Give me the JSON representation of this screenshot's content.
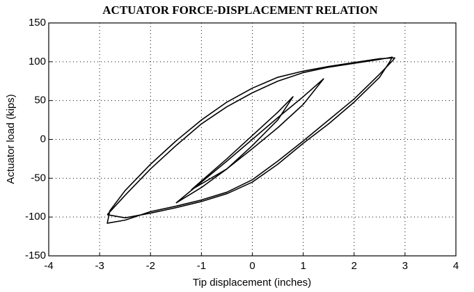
{
  "chart_data": {
    "type": "line",
    "title": "ACTUATOR FORCE-DISPLACEMENT RELATION",
    "xlabel": "Tip displacement (inches)",
    "ylabel": "Actuator load (kips)",
    "xlim": [
      -4,
      4
    ],
    "ylim": [
      -150,
      150
    ],
    "xticks": [
      -4,
      -3,
      -2,
      -1,
      0,
      1,
      2,
      3,
      4
    ],
    "yticks": [
      -150,
      -100,
      -50,
      0,
      50,
      100,
      150
    ],
    "grid": true,
    "series": [
      {
        "color": "#000000",
        "x": [
          -2.85,
          -2.5,
          -2,
          -1.5,
          -1,
          -0.5,
          0,
          0.5,
          1,
          1.5,
          2,
          2.5,
          2.75,
          2.7,
          2.5,
          2,
          1.5,
          1,
          0.5,
          0,
          -0.5,
          -1,
          -1.5,
          -2,
          -2.5,
          -2.85
        ],
        "values": [
          -97,
          -72,
          -38,
          -8,
          20,
          42,
          60,
          75,
          86,
          93,
          98,
          103,
          106,
          100,
          80,
          48,
          20,
          -5,
          -32,
          -55,
          -70,
          -80,
          -88,
          -95,
          -101,
          -97
        ]
      },
      {
        "color": "#000000",
        "x": [
          -2.8,
          -2.5,
          -2,
          -1.5,
          -1,
          -0.5,
          0,
          0.5,
          1,
          1.5,
          2,
          2.5,
          2.8,
          2.75,
          2.5,
          2,
          1.5,
          1,
          0.5,
          0,
          -0.5,
          -1,
          -1.5,
          -2,
          -2.5,
          -2.85,
          -2.8
        ],
        "values": [
          -92,
          -66,
          -32,
          -2,
          25,
          48,
          66,
          80,
          88,
          94,
          99,
          104,
          105,
          101,
          84,
          52,
          25,
          -2,
          -28,
          -52,
          -68,
          -78,
          -86,
          -93,
          -104,
          -108,
          -92
        ]
      },
      {
        "color": "#000000",
        "x": [
          -1.5,
          -1,
          -0.5,
          0,
          0.5,
          1,
          1.4,
          1,
          0.5,
          0,
          -0.5,
          -1,
          -1.5
        ],
        "values": [
          -82,
          -55,
          -28,
          0,
          28,
          55,
          78,
          45,
          15,
          -12,
          -38,
          -62,
          -82
        ]
      },
      {
        "color": "#000000",
        "x": [
          -1.2,
          -0.5,
          0,
          0.5,
          0.8,
          0.5,
          0,
          -0.5,
          -1.2
        ],
        "values": [
          -65,
          -25,
          5,
          35,
          55,
          25,
          -8,
          -38,
          -65
        ]
      }
    ]
  }
}
